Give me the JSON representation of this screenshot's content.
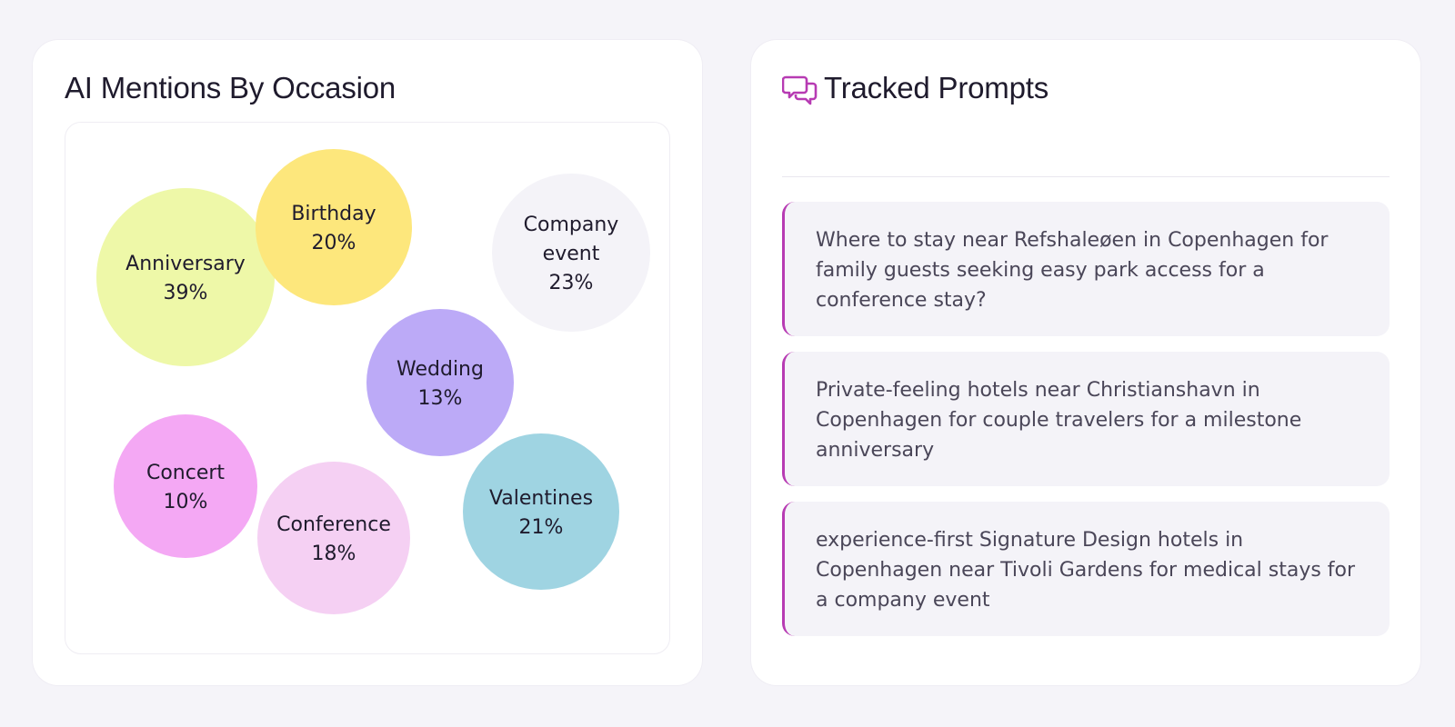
{
  "occasions_card": {
    "title": "AI Mentions By Occasion"
  },
  "chart_data": {
    "type": "bubble",
    "title": "AI Mentions By Occasion",
    "unit": "%",
    "items": [
      {
        "label": "Anniversary",
        "value": 39,
        "color": "#eef8a8"
      },
      {
        "label": "Birthday",
        "value": 20,
        "color": "#fde77c"
      },
      {
        "label": "Company event",
        "value": 23,
        "color": "#f4f3f8"
      },
      {
        "label": "Wedding",
        "value": 13,
        "color": "#bcaaf7"
      },
      {
        "label": "Concert",
        "value": 10,
        "color": "#f4a8f4"
      },
      {
        "label": "Conference",
        "value": 18,
        "color": "#f5d0f3"
      },
      {
        "label": "Valentines",
        "value": 21,
        "color": "#9fd4e2"
      }
    ]
  },
  "prompts_card": {
    "title": "Tracked Prompts",
    "icon": "chat-bubbles-icon",
    "accent_color": "#b73bb3",
    "prompts": [
      {
        "text": "Where to stay near Refshaleøen in Copenhagen for family guests seeking easy park access for a conference stay?"
      },
      {
        "text": "Private-feeling hotels near Christianshavn in Copenhagen for couple travelers for a milestone anniversary"
      },
      {
        "text": "experience-first Signature Design hotels in Copenhagen near Tivoli Gardens for medical stays for a company event"
      }
    ]
  }
}
